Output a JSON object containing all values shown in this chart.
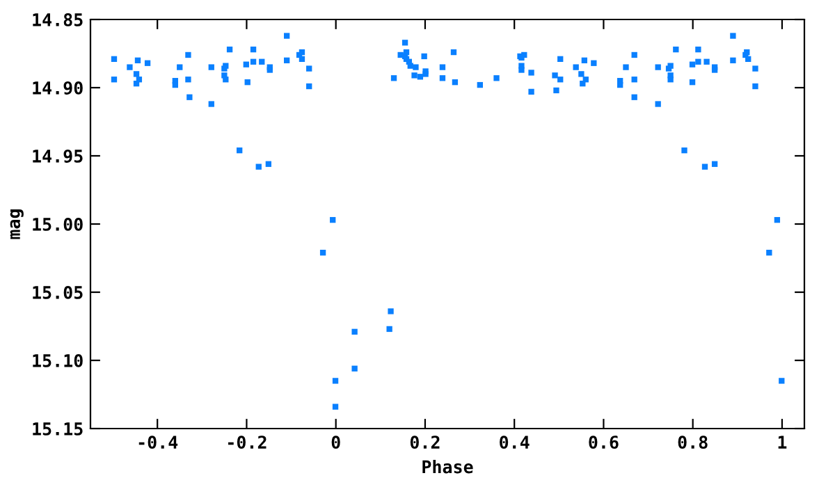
{
  "chart_data": {
    "type": "scatter",
    "xlabel": "Phase",
    "ylabel": "mag",
    "marker": "square",
    "grid": false,
    "legend": false,
    "xlim": [
      -0.55,
      1.05
    ],
    "ylim": [
      15.15,
      14.85
    ],
    "xticks": [
      -0.4,
      -0.2,
      0,
      0.2,
      0.4,
      0.6,
      0.8,
      1
    ],
    "yticks": [
      14.85,
      {
        "value": 14.9,
        "label": "14.90"
      },
      14.95,
      {
        "value": 15.0,
        "label": "15.00"
      },
      15.05,
      {
        "value": 15.1,
        "label": "15.10"
      },
      15.15
    ],
    "series": [
      {
        "color": "#0a80ff",
        "x": [
          -0.497,
          -0.497,
          -0.462,
          -0.444,
          -0.447,
          -0.441,
          -0.447,
          -0.422,
          -0.36,
          -0.36,
          -0.35,
          -0.331,
          -0.331,
          -0.328,
          -0.279,
          -0.279,
          -0.25,
          -0.247,
          -0.25,
          -0.247,
          -0.238,
          -0.216,
          -0.201,
          -0.198,
          -0.185,
          -0.185,
          -0.166,
          -0.173,
          -0.151,
          -0.148,
          -0.148,
          -0.11,
          -0.11,
          -0.082,
          -0.076,
          -0.076,
          -0.06,
          -0.06,
          -0.007,
          -0.029,
          -0.001,
          -0.001,
          0.042,
          0.042,
          0.123,
          0.12,
          0.155,
          0.145,
          0.158,
          0.155,
          0.158,
          0.164,
          0.167,
          0.179,
          0.13,
          0.176,
          0.189,
          0.198,
          0.201,
          0.201,
          0.239,
          0.239,
          0.264,
          0.267,
          0.323,
          0.36,
          0.413,
          0.422,
          0.416,
          0.416,
          0.416,
          0.438,
          0.438,
          0.503,
          0.491,
          0.503,
          0.494,
          0.538,
          0.557,
          0.55,
          0.56,
          0.553,
          0.578,
          0.637,
          0.637,
          0.65,
          0.669,
          0.669,
          0.669,
          0.722,
          0.722,
          0.746,
          0.75,
          0.75,
          0.75,
          0.762,
          0.781,
          0.799,
          0.799,
          0.812,
          0.812,
          0.831,
          0.827,
          0.849,
          0.849,
          0.849,
          0.89,
          0.89,
          0.918,
          0.921,
          0.924,
          0.94,
          0.94,
          0.989,
          0.971,
          0.999
        ],
        "values": [
          14.879,
          14.894,
          14.885,
          14.88,
          14.89,
          14.894,
          14.897,
          14.882,
          14.895,
          14.898,
          14.885,
          14.876,
          14.894,
          14.907,
          14.885,
          14.912,
          14.886,
          14.884,
          14.891,
          14.894,
          14.872,
          14.946,
          14.883,
          14.896,
          14.872,
          14.881,
          14.881,
          14.958,
          14.956,
          14.885,
          14.887,
          14.862,
          14.88,
          14.876,
          14.874,
          14.879,
          14.886,
          14.899,
          14.997,
          15.021,
          15.115,
          15.134,
          15.079,
          15.106,
          15.064,
          15.077,
          14.867,
          14.876,
          14.874,
          14.877,
          14.879,
          14.881,
          14.884,
          14.885,
          14.893,
          14.891,
          14.892,
          14.877,
          14.888,
          14.89,
          14.885,
          14.893,
          14.874,
          14.896,
          14.898,
          14.893,
          14.877,
          14.876,
          14.878,
          14.884,
          14.887,
          14.889,
          14.903,
          14.879,
          14.891,
          14.894,
          14.902,
          14.885,
          14.88,
          14.89,
          14.894,
          14.897,
          14.882,
          14.895,
          14.898,
          14.885,
          14.876,
          14.894,
          14.907,
          14.885,
          14.912,
          14.886,
          14.884,
          14.891,
          14.894,
          14.872,
          14.946,
          14.883,
          14.896,
          14.872,
          14.881,
          14.881,
          14.958,
          14.956,
          14.885,
          14.887,
          14.862,
          14.88,
          14.876,
          14.874,
          14.879,
          14.886,
          14.899,
          14.997,
          15.021,
          15.115
        ]
      }
    ]
  }
}
